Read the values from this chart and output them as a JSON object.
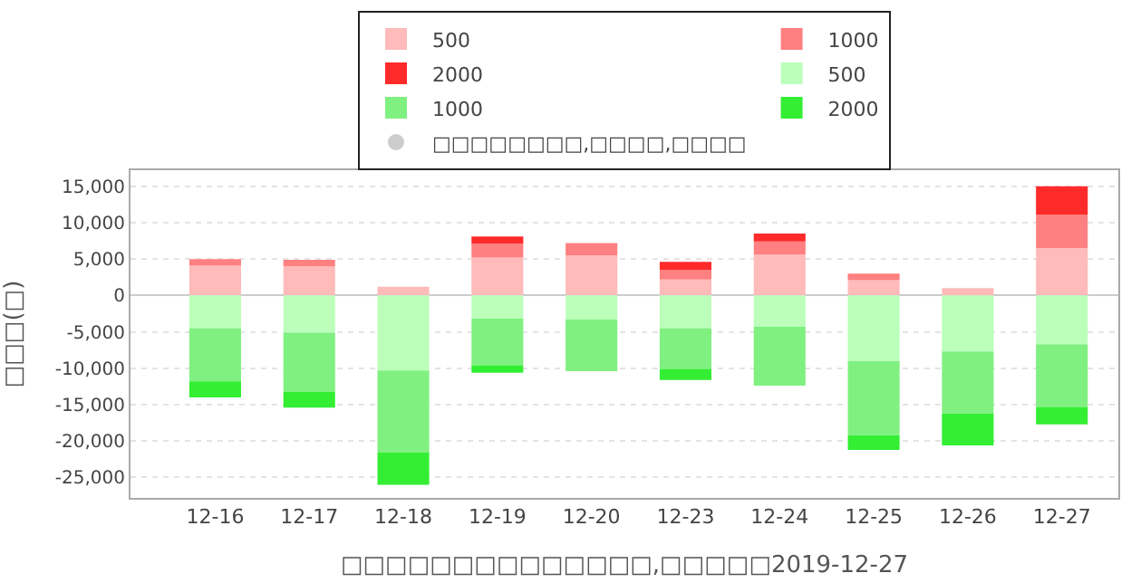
{
  "chart_data": {
    "type": "bar",
    "stacked": true,
    "xlabel": "□□□□□□□□□□□□□□,□□□□□2019-12-27",
    "ylabel": "□□□(□)",
    "categories": [
      "12-16",
      "12-17",
      "12-18",
      "12-19",
      "12-20",
      "12-23",
      "12-24",
      "12-25",
      "12-26",
      "12-27"
    ],
    "series": [
      {
        "name": "500",
        "color": "#ffbaba",
        "values": [
          4100,
          4000,
          1200,
          5200,
          5500,
          2200,
          5600,
          2100,
          1000,
          6500
        ]
      },
      {
        "name": "1000",
        "color": "#ff8080",
        "values": [
          900,
          900,
          0,
          1900,
          1700,
          1300,
          1800,
          900,
          0,
          4600
        ]
      },
      {
        "name": "2000",
        "color": "#ff2a2a",
        "values": [
          0,
          0,
          0,
          1000,
          0,
          1100,
          1100,
          0,
          0,
          3900
        ]
      },
      {
        "name": "500",
        "color": "#bbffbb",
        "values": [
          -4500,
          -5100,
          -10300,
          -3200,
          -3300,
          -4500,
          -4300,
          -9000,
          -7700,
          -6700
        ]
      },
      {
        "name": "1000",
        "color": "#80f080",
        "values": [
          -7300,
          -8100,
          -11300,
          -6400,
          -7100,
          -5600,
          -8100,
          -10200,
          -8500,
          -8600
        ]
      },
      {
        "name": "2000",
        "color": "#33ee33",
        "values": [
          -2200,
          -2200,
          -4400,
          -1000,
          0,
          -1500,
          0,
          -2000,
          -4400,
          -2400
        ]
      },
      {
        "name": "□□□□□□□□,□□□□,□□□□",
        "type": "scatter",
        "color": "#cccccc",
        "values": [
          null,
          null,
          null,
          null,
          null,
          null,
          null,
          null,
          null,
          null
        ]
      }
    ],
    "ylim": [
      -27800,
      17200
    ],
    "yticks": [
      {
        "value": -25000,
        "label": "-25,000"
      },
      {
        "value": -20000,
        "label": "-20,000"
      },
      {
        "value": -15000,
        "label": "-15,000"
      },
      {
        "value": -10000,
        "label": "-10,000"
      },
      {
        "value": -5000,
        "label": "-5,000"
      },
      0,
      {
        "value": 5000,
        "label": "5,000"
      },
      {
        "value": 10000,
        "label": "10,000"
      },
      {
        "value": 15000,
        "label": "15,000"
      }
    ],
    "grid": "y",
    "legend": "top"
  }
}
